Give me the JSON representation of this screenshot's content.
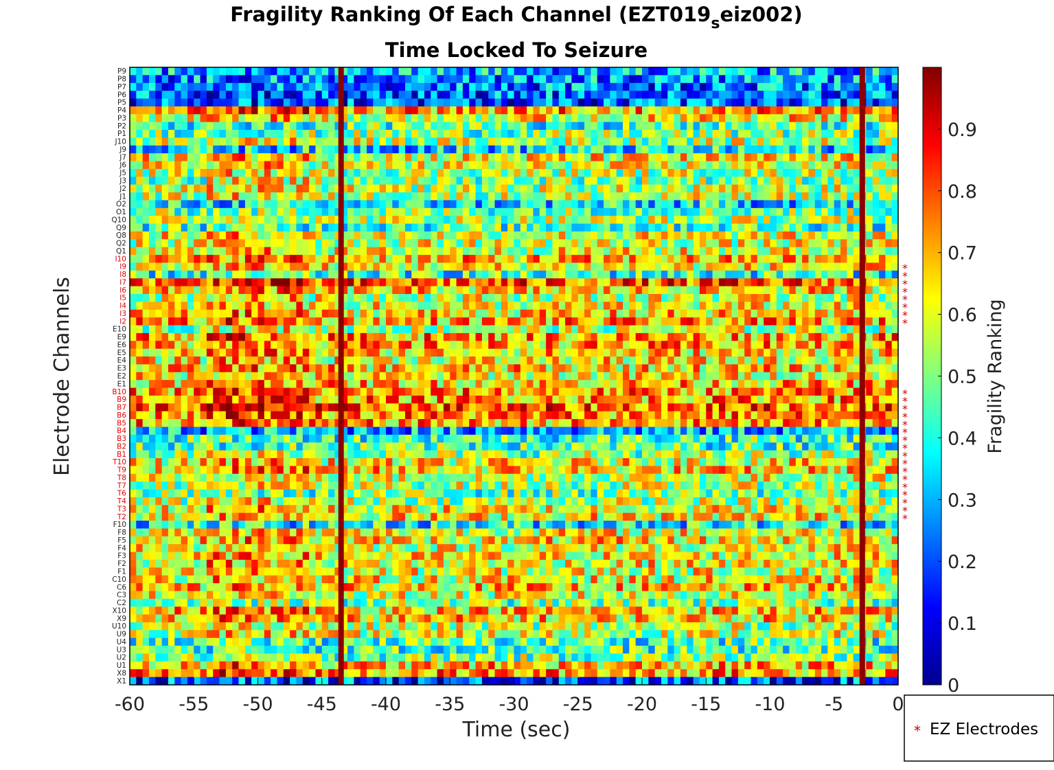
{
  "chart_data": {
    "type": "heatmap",
    "title_main": "Fragility Ranking Of Each Channel (EZT019",
    "title_subscript": "s",
    "title_tail": "eiz002)",
    "subtitle": "Time Locked To Seizure",
    "xlabel": "Time (sec)",
    "ylabel": "Electrode Channels",
    "xlim": [
      -60,
      0
    ],
    "x_ticks": [
      -60,
      -55,
      -50,
      -45,
      -40,
      -35,
      -30,
      -25,
      -20,
      -15,
      -10,
      -5,
      0
    ],
    "x_tick_labels": [
      "-60",
      "-55",
      "-50",
      "-45",
      "-40",
      "-35",
      "-30",
      "-25",
      "-20",
      "-15",
      "-10",
      "-5",
      "0"
    ],
    "time_columns": 120,
    "channels_top_to_bottom": [
      "P9",
      "P8",
      "P7",
      "P6",
      "P5",
      "P4",
      "P3",
      "P2",
      "P1",
      "J10",
      "J9",
      "J7",
      "J6",
      "J5",
      "J3",
      "J2",
      "J1",
      "O2",
      "O1",
      "Q10",
      "Q9",
      "Q8",
      "Q2",
      "Q1",
      "I10",
      "I9",
      "I8",
      "I7",
      "I6",
      "I5",
      "I4",
      "I3",
      "I2",
      "E10",
      "E9",
      "E6",
      "E5",
      "E4",
      "E3",
      "E2",
      "E1",
      "B10",
      "B9",
      "B7",
      "B6",
      "B5",
      "B4",
      "B3",
      "B2",
      "B1",
      "T10",
      "T9",
      "T8",
      "T7",
      "T6",
      "T4",
      "T3",
      "T2",
      "F10",
      "F8",
      "F5",
      "F4",
      "F3",
      "F2",
      "F1",
      "C10",
      "C6",
      "C3",
      "C2",
      "X10",
      "X9",
      "U10",
      "U9",
      "U4",
      "U3",
      "U2",
      "U1",
      "X8",
      "X1"
    ],
    "ez_channels": [
      "I10",
      "I9",
      "I8",
      "I7",
      "I6",
      "I5",
      "I4",
      "I3",
      "I2",
      "B10",
      "B9",
      "B7",
      "B6",
      "B5",
      "B4",
      "B3",
      "B2",
      "B1",
      "T10",
      "T9",
      "T8",
      "T7",
      "T6",
      "T4",
      "T3",
      "T2"
    ],
    "ez_marker_rows": {
      "group1": [
        "I9",
        "I8",
        "I7",
        "I6",
        "I5",
        "I4",
        "I3",
        "I2"
      ],
      "group2": [
        "B10",
        "B9",
        "B7",
        "B6",
        "B5",
        "B4",
        "B3",
        "B2",
        "B1",
        "T10",
        "T9",
        "T8",
        "T7",
        "T6",
        "T4",
        "T3",
        "T2"
      ]
    },
    "vertical_lines_sec": [
      -43.5,
      -2.8
    ],
    "colorbar": {
      "label": "Fragility Ranking",
      "range": [
        0,
        1
      ],
      "ticks": [
        0,
        0.1,
        0.2,
        0.3,
        0.4,
        0.5,
        0.6,
        0.7,
        0.8,
        0.9
      ],
      "tick_labels": [
        "0",
        "0.1",
        "0.2",
        "0.3",
        "0.4",
        "0.5",
        "0.6",
        "0.7",
        "0.8",
        "0.9"
      ],
      "colormap": "jet"
    },
    "legend": {
      "marker": "*",
      "label": "EZ Electrodes",
      "placement": "bottom-right, outside plot",
      "marker_color": "#cc0000"
    },
    "row_profile_approx": {
      "P9": 0.3,
      "P8": 0.26,
      "P7": 0.24,
      "P6": 0.22,
      "P5": 0.2,
      "P4": 0.72,
      "P3": 0.62,
      "P2": 0.45,
      "P1": 0.5,
      "J10": 0.55,
      "J9": 0.35,
      "J7": 0.62,
      "J6": 0.58,
      "J5": 0.55,
      "J3": 0.52,
      "J2": 0.55,
      "J1": 0.55,
      "O2": 0.35,
      "O1": 0.5,
      "Q10": 0.55,
      "Q9": 0.45,
      "Q8": 0.6,
      "Q2": 0.58,
      "Q1": 0.6,
      "I10": 0.68,
      "I9": 0.62,
      "I8": 0.42,
      "I7": 0.78,
      "I6": 0.65,
      "I5": 0.58,
      "I4": 0.6,
      "I3": 0.65,
      "I2": 0.7,
      "E10": 0.55,
      "E9": 0.72,
      "E6": 0.7,
      "E5": 0.66,
      "E4": 0.62,
      "E3": 0.66,
      "E2": 0.62,
      "E1": 0.68,
      "B10": 0.72,
      "B9": 0.72,
      "B7": 0.78,
      "B6": 0.74,
      "B5": 0.7,
      "B4": 0.3,
      "B3": 0.45,
      "B2": 0.45,
      "B1": 0.52,
      "T10": 0.62,
      "T9": 0.66,
      "T8": 0.58,
      "T7": 0.55,
      "T6": 0.48,
      "T4": 0.55,
      "T3": 0.62,
      "T2": 0.64,
      "F10": 0.38,
      "F8": 0.62,
      "F5": 0.64,
      "F4": 0.6,
      "F3": 0.62,
      "F2": 0.62,
      "F1": 0.6,
      "C10": 0.62,
      "C6": 0.66,
      "C3": 0.58,
      "C2": 0.5,
      "X10": 0.68,
      "X9": 0.66,
      "U10": 0.55,
      "U9": 0.58,
      "U4": 0.45,
      "U3": 0.45,
      "U2": 0.5,
      "U1": 0.68,
      "X8": 0.72,
      "X1": 0.2
    },
    "notes_visible": "Dark red vertical stripes near -43.5 s and -2.8 s; X1 row and P5-P9 rows mostly blue."
  }
}
